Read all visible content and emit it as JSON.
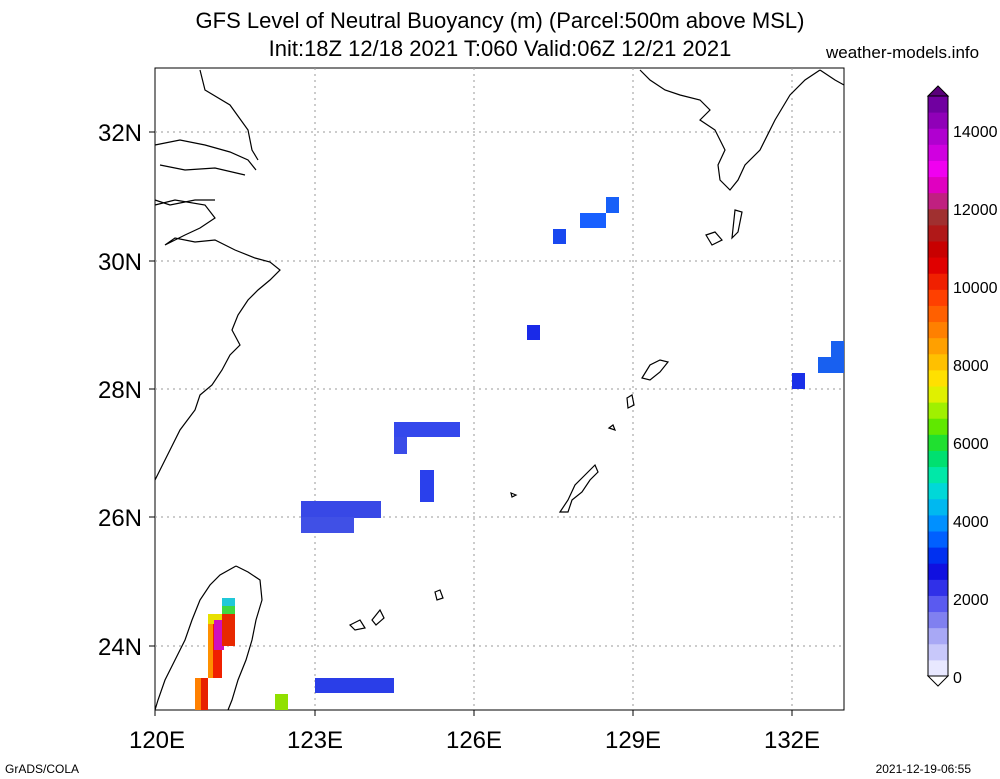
{
  "header": {
    "title_line1": "GFS Level of Neutral Buoyancy (m) (Parcel:500m above MSL)",
    "title_line2": "Init:18Z 12/18 2021 T:060 Valid:06Z 12/21 2021",
    "site": "weather-models.info"
  },
  "footer": {
    "left": "GrADS/COLA",
    "right": "2021-12-19-06:55"
  },
  "map": {
    "lon_range": [
      120,
      133
    ],
    "lat_range": [
      23,
      33
    ],
    "x_ticks": [
      "120E",
      "123E",
      "126E",
      "129E",
      "132E"
    ],
    "y_ticks": [
      "32N",
      "30N",
      "28N",
      "26N",
      "24N"
    ],
    "grid": true
  },
  "colorbar": {
    "labels": [
      "14000",
      "12000",
      "10000",
      "8000",
      "6000",
      "4000",
      "2000",
      "0"
    ],
    "colors": [
      "#e8e8ff",
      "#c8c8fa",
      "#a8a8f5",
      "#8080f0",
      "#5a5af0",
      "#3030e8",
      "#1010e0",
      "#0030f0",
      "#0060ff",
      "#0090ff",
      "#00b8f0",
      "#00d8d8",
      "#00e8a8",
      "#00e070",
      "#20e030",
      "#60e800",
      "#a0f000",
      "#e0f000",
      "#ffe000",
      "#ffc000",
      "#ffa000",
      "#ff8000",
      "#ff6000",
      "#ff4000",
      "#f02000",
      "#e00000",
      "#c80000",
      "#b01818",
      "#a03030",
      "#c02080",
      "#e000c0",
      "#f000f0",
      "#d000e0",
      "#b000d0",
      "#9000b8",
      "#7000a0"
    ]
  }
}
